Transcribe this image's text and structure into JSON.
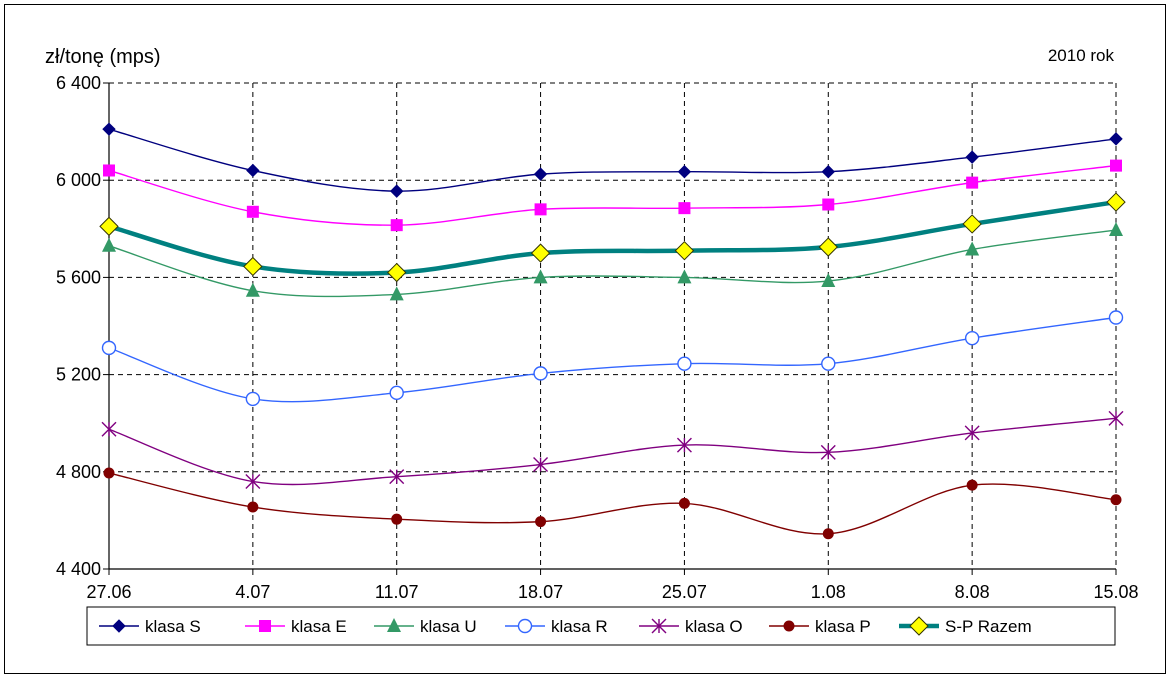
{
  "chart_data": {
    "type": "line",
    "title": "",
    "subtitle": "2010 rok",
    "xlabel": "",
    "ylabel": "zł/tonę (mps)",
    "categories": [
      "27.06",
      "4.07",
      "11.07",
      "18.07",
      "25.07",
      "1.08",
      "8.08",
      "15.08"
    ],
    "ylim": [
      4400,
      6400
    ],
    "yticks": [
      4400,
      4800,
      5200,
      5600,
      6000,
      6400
    ],
    "ytick_labels": [
      "4 400",
      "4 800",
      "5 200",
      "5 600",
      "6 000",
      "6 400"
    ],
    "grid": true,
    "legend_position": "bottom",
    "series": [
      {
        "name": "klasa S",
        "color": "#00007f",
        "marker": "diamond",
        "values": [
          6210,
          6040,
          5955,
          6025,
          6035,
          6035,
          6095,
          6170
        ]
      },
      {
        "name": "klasa E",
        "color": "#ff00ff",
        "marker": "square",
        "values": [
          6040,
          5870,
          5815,
          5880,
          5885,
          5900,
          5990,
          6060
        ]
      },
      {
        "name": "klasa U",
        "color": "#339966",
        "marker": "triangle",
        "values": [
          5730,
          5545,
          5530,
          5600,
          5600,
          5585,
          5715,
          5795
        ]
      },
      {
        "name": "klasa R",
        "color": "#3366ff",
        "marker": "circle-open",
        "values": [
          5310,
          5100,
          5125,
          5205,
          5245,
          5245,
          5350,
          5435
        ]
      },
      {
        "name": "klasa O",
        "color": "#800080",
        "marker": "star",
        "values": [
          4975,
          4760,
          4780,
          4830,
          4910,
          4880,
          4960,
          5020
        ]
      },
      {
        "name": "klasa P",
        "color": "#800000",
        "marker": "circle",
        "values": [
          4795,
          4655,
          4605,
          4595,
          4670,
          4545,
          4745,
          4685
        ]
      },
      {
        "name": "S-P Razem",
        "color": "#008080",
        "marker": "diamond-yellow",
        "thick": true,
        "values": [
          5810,
          5645,
          5620,
          5700,
          5710,
          5725,
          5820,
          5910
        ]
      }
    ]
  }
}
